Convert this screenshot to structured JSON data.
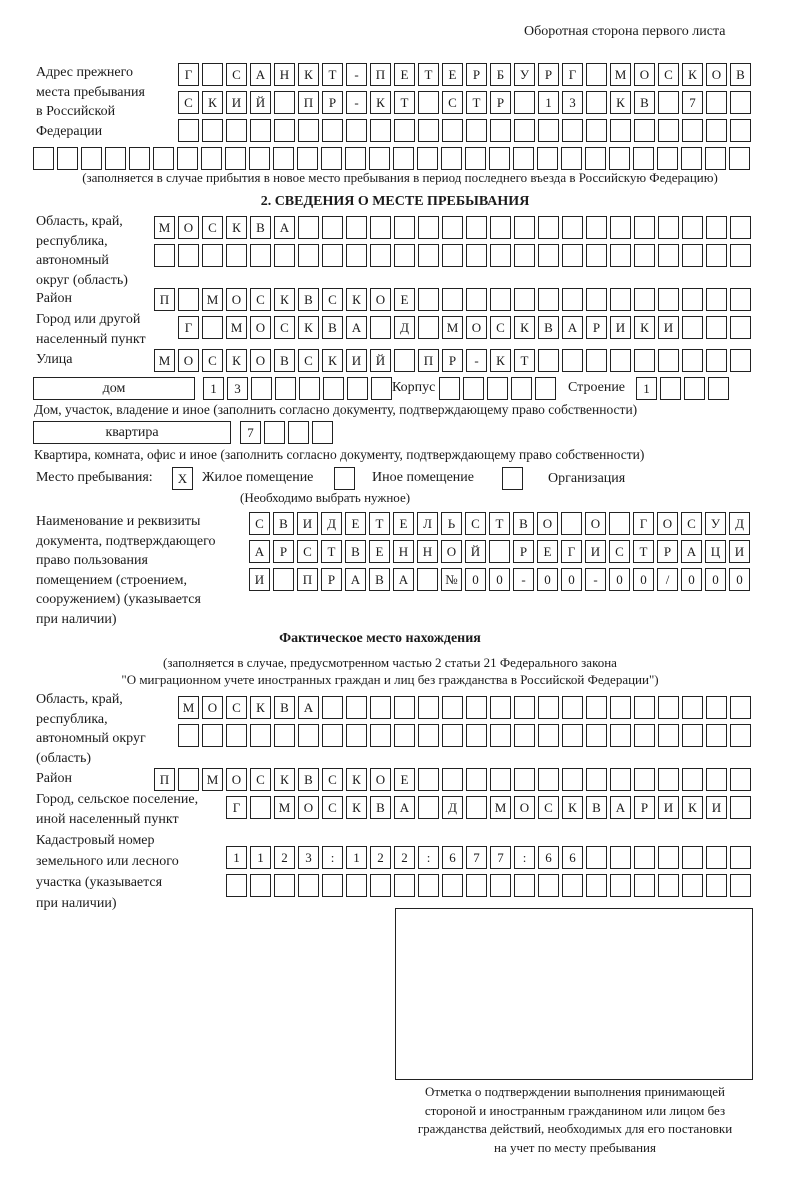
{
  "header": "Оборотная сторона первого листа",
  "prev_address": {
    "label": [
      "Адрес прежнего",
      "места пребывания",
      "в Российской",
      "Федерации"
    ],
    "rows": [
      [
        "Г",
        "",
        "С",
        "А",
        "Н",
        "К",
        "Т",
        "-",
        "П",
        "Е",
        "Т",
        "Е",
        "Р",
        "Б",
        "У",
        "Р",
        "Г",
        "",
        "М",
        "О",
        "С",
        "К",
        "О",
        "В"
      ],
      [
        "С",
        "К",
        "И",
        "Й",
        "",
        "П",
        "Р",
        "-",
        "К",
        "Т",
        "",
        "С",
        "Т",
        "Р",
        "",
        "1",
        "3",
        "",
        "К",
        "В",
        "",
        "7",
        "",
        ""
      ],
      [
        "",
        "",
        "",
        "",
        "",
        "",
        "",
        "",
        "",
        "",
        "",
        "",
        "",
        "",
        "",
        "",
        "",
        "",
        "",
        "",
        "",
        "",
        "",
        ""
      ],
      [
        "",
        "",
        "",
        "",
        "",
        "",
        "",
        "",
        "",
        "",
        "",
        "",
        "",
        "",
        "",
        "",
        "",
        "",
        "",
        "",
        "",
        "",
        "",
        "",
        "",
        "",
        "",
        "",
        "",
        ""
      ]
    ],
    "note": "(заполняется в случае прибытия в новое место пребывания в период последнего въезда в Российскую Федерацию)"
  },
  "section2": {
    "title": "2. СВЕДЕНИЯ О МЕСТЕ ПРЕБЫВАНИЯ",
    "region": {
      "label": [
        "Область, край,",
        "республика,",
        "автономный",
        "округ (область)"
      ],
      "rows": [
        [
          "М",
          "О",
          "С",
          "К",
          "В",
          "А",
          "",
          "",
          "",
          "",
          "",
          "",
          "",
          "",
          "",
          "",
          "",
          "",
          "",
          "",
          "",
          "",
          "",
          "",
          ""
        ],
        [
          "",
          "",
          "",
          "",
          "",
          "",
          "",
          "",
          "",
          "",
          "",
          "",
          "",
          "",
          "",
          "",
          "",
          "",
          "",
          "",
          "",
          "",
          "",
          "",
          ""
        ]
      ]
    },
    "district": {
      "label": "Район",
      "row": [
        "П",
        "",
        "М",
        "О",
        "С",
        "К",
        "В",
        "С",
        "К",
        "О",
        "Е",
        "",
        "",
        "",
        "",
        "",
        "",
        "",
        "",
        "",
        "",
        "",
        "",
        "",
        ""
      ]
    },
    "city": {
      "label": [
        "Город или другой",
        "населенный пункт"
      ],
      "row": [
        "Г",
        "",
        "М",
        "О",
        "С",
        "К",
        "В",
        "А",
        "",
        "Д",
        "",
        "М",
        "О",
        "С",
        "К",
        "В",
        "А",
        "Р",
        "И",
        "К",
        "И",
        "",
        "",
        ""
      ]
    },
    "street": {
      "label": "Улица",
      "row": [
        "М",
        "О",
        "С",
        "К",
        "О",
        "В",
        "С",
        "К",
        "И",
        "Й",
        "",
        "П",
        "Р",
        "-",
        "К",
        "Т",
        "",
        "",
        "",
        "",
        "",
        "",
        "",
        "",
        ""
      ]
    },
    "house": {
      "type": "дом",
      "number": [
        "1",
        "3",
        "",
        "",
        "",
        "",
        "",
        ""
      ],
      "korpus_label": "Корпус",
      "korpus": [
        "",
        "",
        "",
        "",
        ""
      ],
      "building_label": "Строение",
      "building": [
        "1",
        "",
        "",
        ""
      ],
      "note": "Дом, участок, владение и иное (заполнить согласно документу, подтверждающему право собственности)"
    },
    "apartment": {
      "type": "квартира",
      "number": [
        "7",
        "",
        "",
        ""
      ],
      "note": "Квартира, комната, офис и иное (заполнить согласно документу, подтверждающему право собственности)"
    },
    "place": {
      "label": "Место пребывания:",
      "options": [
        {
          "label": "Жилое помещение",
          "mark": "X",
          "checked": true
        },
        {
          "label": "Иное помещение",
          "mark": "",
          "checked": false
        },
        {
          "label": "Организация",
          "mark": "",
          "checked": false
        }
      ],
      "note": "(Необходимо выбрать нужное)"
    },
    "document": {
      "label": [
        "Наименование и реквизиты",
        "документа, подтверждающего",
        "право пользования",
        "помещением (строением,",
        "сооружением) (указывается",
        "при наличии)"
      ],
      "rows": [
        [
          "С",
          "В",
          "И",
          "Д",
          "Е",
          "Т",
          "Е",
          "Л",
          "Ь",
          "С",
          "Т",
          "В",
          "О",
          "",
          "О",
          "",
          "Г",
          "О",
          "С",
          "У",
          "Д"
        ],
        [
          "А",
          "Р",
          "С",
          "Т",
          "В",
          "Е",
          "Н",
          "Н",
          "О",
          "Й",
          "",
          "Р",
          "Е",
          "Г",
          "И",
          "С",
          "Т",
          "Р",
          "А",
          "Ц",
          "И"
        ],
        [
          "И",
          "",
          "П",
          "Р",
          "А",
          "В",
          "А",
          "",
          "№",
          "0",
          "0",
          "-",
          "0",
          "0",
          "-",
          "0",
          "0",
          "/",
          "0",
          "0",
          "0"
        ]
      ]
    }
  },
  "actual": {
    "title": "Фактическое место нахождения",
    "note1": "(заполняется в случае, предусмотренном частью 2 статьи 21 Федерального закона",
    "note2": "\"О миграционном учете иностранных граждан и лиц без гражданства в Российской Федерации\")",
    "region": {
      "label": [
        "Область, край,",
        "республика,",
        "автономный округ",
        "(область)"
      ],
      "rows": [
        [
          "М",
          "О",
          "С",
          "К",
          "В",
          "А",
          "",
          "",
          "",
          "",
          "",
          "",
          "",
          "",
          "",
          "",
          "",
          "",
          "",
          "",
          "",
          "",
          "",
          ""
        ],
        [
          "",
          "",
          "",
          "",
          "",
          "",
          "",
          "",
          "",
          "",
          "",
          "",
          "",
          "",
          "",
          "",
          "",
          "",
          "",
          "",
          "",
          "",
          "",
          ""
        ]
      ]
    },
    "district": {
      "label": "Район",
      "row": [
        "П",
        "",
        "М",
        "О",
        "С",
        "К",
        "В",
        "С",
        "К",
        "О",
        "Е",
        "",
        "",
        "",
        "",
        "",
        "",
        "",
        "",
        "",
        "",
        "",
        "",
        "",
        ""
      ]
    },
    "city": {
      "label": [
        "Город, сельское поселение,",
        "иной населенный пункт"
      ],
      "row": [
        "Г",
        "",
        "М",
        "О",
        "С",
        "К",
        "В",
        "А",
        "",
        "Д",
        "",
        "М",
        "О",
        "С",
        "К",
        "В",
        "А",
        "Р",
        "И",
        "К",
        "И",
        ""
      ]
    },
    "cadastral": {
      "label": [
        "Кадастровый номер",
        "земельного или лесного",
        "участка (указывается",
        "при наличии)"
      ],
      "rows": [
        [
          "1",
          "1",
          "2",
          "3",
          ":",
          "1",
          "2",
          "2",
          ":",
          "6",
          "7",
          "7",
          ":",
          "6",
          "6",
          "",
          "",
          "",
          "",
          "",
          "",
          ""
        ],
        [
          "",
          "",
          "",
          "",
          "",
          "",
          "",
          "",
          "",
          "",
          "",
          "",
          "",
          "",
          "",
          "",
          "",
          "",
          "",
          "",
          "",
          ""
        ]
      ]
    }
  },
  "confirmation": {
    "caption": [
      "Отметка о подтверждении выполнения принимающей",
      "стороной и иностранным гражданином или лицом без",
      "гражданства действий, необходимых для его постановки",
      "на учет по месту пребывания"
    ]
  }
}
